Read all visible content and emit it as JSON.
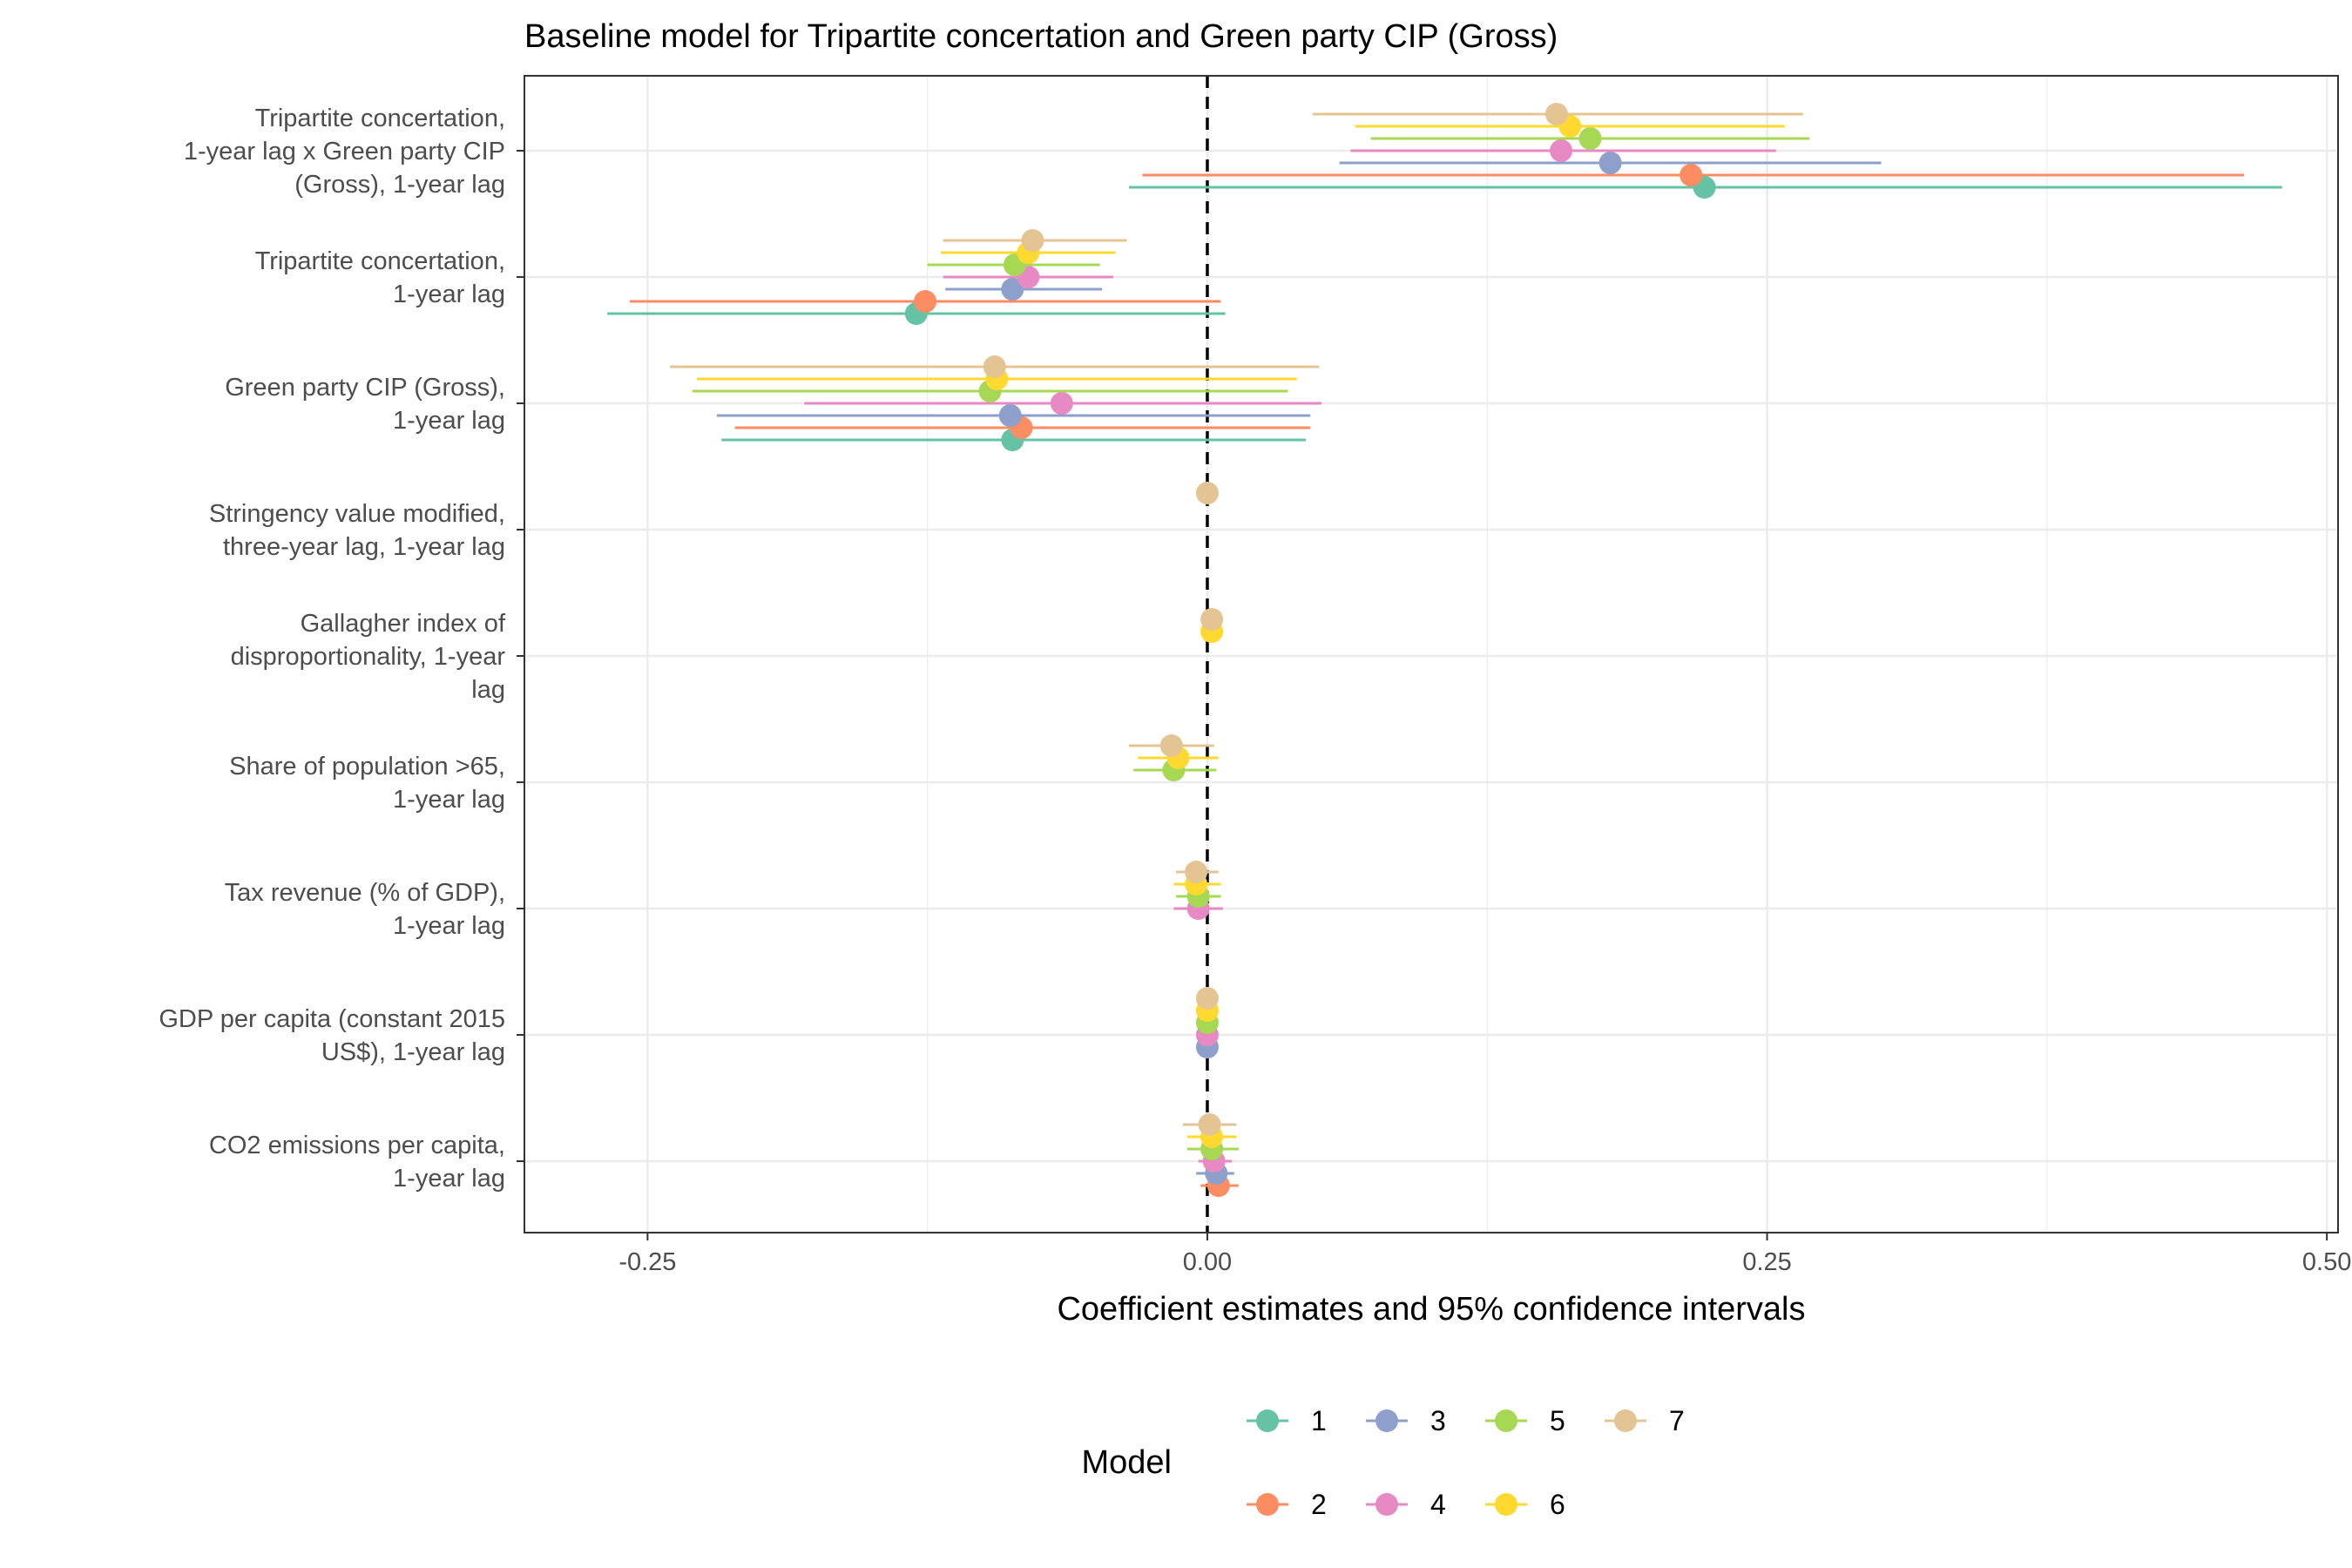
{
  "chart_data": {
    "type": "coefficient-plot",
    "title": "Baseline model for Tripartite concertation and Green party CIP (Gross)",
    "xlabel": "Coefficient estimates and 95% confidence intervals",
    "xlim": [
      -0.305,
      0.505
    ],
    "xticks": [
      -0.25,
      0,
      0.25,
      0.5
    ],
    "xtick_labels": [
      "-0.25",
      "0.00",
      "0.25",
      "0.50"
    ],
    "reference_line": 0,
    "grid": true,
    "legend": {
      "title": "Model",
      "position": "bottom",
      "entries": [
        "1",
        "2",
        "3",
        "4",
        "5",
        "6",
        "7"
      ]
    },
    "colors": {
      "1": "#66C2A5",
      "2": "#FC8D62",
      "3": "#8DA0CB",
      "4": "#E78AC3",
      "5": "#A6D854",
      "6": "#FFD92F",
      "7": "#E5C494"
    },
    "terms": [
      {
        "label": [
          "Tripartite concertation,",
          "1-year lag x Green party CIP",
          "(Gross), 1-year lag"
        ],
        "estimates": [
          {
            "model": "1",
            "est": 0.222,
            "lo": -0.035,
            "hi": 0.48
          },
          {
            "model": "2",
            "est": 0.216,
            "lo": -0.029,
            "hi": 0.463
          },
          {
            "model": "3",
            "est": 0.18,
            "lo": 0.059,
            "hi": 0.301
          },
          {
            "model": "4",
            "est": 0.158,
            "lo": 0.064,
            "hi": 0.254
          },
          {
            "model": "5",
            "est": 0.171,
            "lo": 0.073,
            "hi": 0.269
          },
          {
            "model": "6",
            "est": 0.162,
            "lo": 0.066,
            "hi": 0.258
          },
          {
            "model": "7",
            "est": 0.156,
            "lo": 0.047,
            "hi": 0.266
          }
        ]
      },
      {
        "label": [
          "Tripartite concertation,",
          "1-year lag"
        ],
        "estimates": [
          {
            "model": "1",
            "est": -0.13,
            "lo": -0.268,
            "hi": 0.008
          },
          {
            "model": "2",
            "est": -0.126,
            "lo": -0.258,
            "hi": 0.006
          },
          {
            "model": "3",
            "est": -0.087,
            "lo": -0.117,
            "hi": -0.047
          },
          {
            "model": "4",
            "est": -0.08,
            "lo": -0.118,
            "hi": -0.042
          },
          {
            "model": "5",
            "est": -0.086,
            "lo": -0.125,
            "hi": -0.048
          },
          {
            "model": "6",
            "est": -0.08,
            "lo": -0.119,
            "hi": -0.041
          },
          {
            "model": "7",
            "est": -0.078,
            "lo": -0.118,
            "hi": -0.036
          }
        ]
      },
      {
        "label": [
          "Green party CIP (Gross),",
          "1-year lag"
        ],
        "estimates": [
          {
            "model": "1",
            "est": -0.087,
            "lo": -0.217,
            "hi": 0.044
          },
          {
            "model": "2",
            "est": -0.083,
            "lo": -0.211,
            "hi": 0.046
          },
          {
            "model": "3",
            "est": -0.088,
            "lo": -0.219,
            "hi": 0.046
          },
          {
            "model": "4",
            "est": -0.065,
            "lo": -0.18,
            "hi": 0.051
          },
          {
            "model": "5",
            "est": -0.097,
            "lo": -0.23,
            "hi": 0.036
          },
          {
            "model": "6",
            "est": -0.094,
            "lo": -0.228,
            "hi": 0.04
          },
          {
            "model": "7",
            "est": -0.095,
            "lo": -0.24,
            "hi": 0.05
          }
        ]
      },
      {
        "label": [
          "Stringency value modified,",
          "three-year lag, 1-year lag"
        ],
        "estimates": [
          {
            "model": "7",
            "est": 0.0,
            "lo": 0.0,
            "hi": 0.0
          }
        ]
      },
      {
        "label": [
          "Gallagher index of",
          "disproportionality, 1-year",
          "lag"
        ],
        "estimates": [
          {
            "model": "6",
            "est": 0.002,
            "lo": 0.001,
            "hi": 0.003
          },
          {
            "model": "7",
            "est": 0.002,
            "lo": 0.001,
            "hi": 0.003
          }
        ]
      },
      {
        "label": [
          "Share of population >65,",
          "1-year lag"
        ],
        "estimates": [
          {
            "model": "5",
            "est": -0.015,
            "lo": -0.033,
            "hi": 0.004
          },
          {
            "model": "6",
            "est": -0.013,
            "lo": -0.031,
            "hi": 0.005
          },
          {
            "model": "7",
            "est": -0.016,
            "lo": -0.035,
            "hi": 0.003
          }
        ]
      },
      {
        "label": [
          "Tax revenue (% of GDP),",
          "1-year lag"
        ],
        "estimates": [
          {
            "model": "4",
            "est": -0.004,
            "lo": -0.015,
            "hi": 0.007
          },
          {
            "model": "5",
            "est": -0.004,
            "lo": -0.014,
            "hi": 0.006
          },
          {
            "model": "6",
            "est": -0.005,
            "lo": -0.015,
            "hi": 0.006
          },
          {
            "model": "7",
            "est": -0.005,
            "lo": -0.014,
            "hi": 0.005
          }
        ]
      },
      {
        "label": [
          "GDP per capita (constant 2015",
          "US$), 1-year lag"
        ],
        "estimates": [
          {
            "model": "3",
            "est": 0.0,
            "lo": 0.0,
            "hi": 0.0
          },
          {
            "model": "4",
            "est": 0.0,
            "lo": 0.0,
            "hi": 0.0
          },
          {
            "model": "5",
            "est": 0.0,
            "lo": 0.0,
            "hi": 0.0
          },
          {
            "model": "6",
            "est": 0.0,
            "lo": 0.0,
            "hi": 0.0
          },
          {
            "model": "7",
            "est": 0.0,
            "lo": 0.0,
            "hi": 0.0
          }
        ]
      },
      {
        "label": [
          "CO2 emissions per capita,",
          "1-year lag"
        ],
        "estimates": [
          {
            "model": "2",
            "est": 0.005,
            "lo": -0.003,
            "hi": 0.014
          },
          {
            "model": "3",
            "est": 0.004,
            "lo": -0.005,
            "hi": 0.012
          },
          {
            "model": "4",
            "est": 0.003,
            "lo": -0.004,
            "hi": 0.011
          },
          {
            "model": "5",
            "est": 0.002,
            "lo": -0.009,
            "hi": 0.014
          },
          {
            "model": "6",
            "est": 0.002,
            "lo": -0.009,
            "hi": 0.013
          },
          {
            "model": "7",
            "est": 0.001,
            "lo": -0.011,
            "hi": 0.013
          }
        ]
      }
    ]
  }
}
